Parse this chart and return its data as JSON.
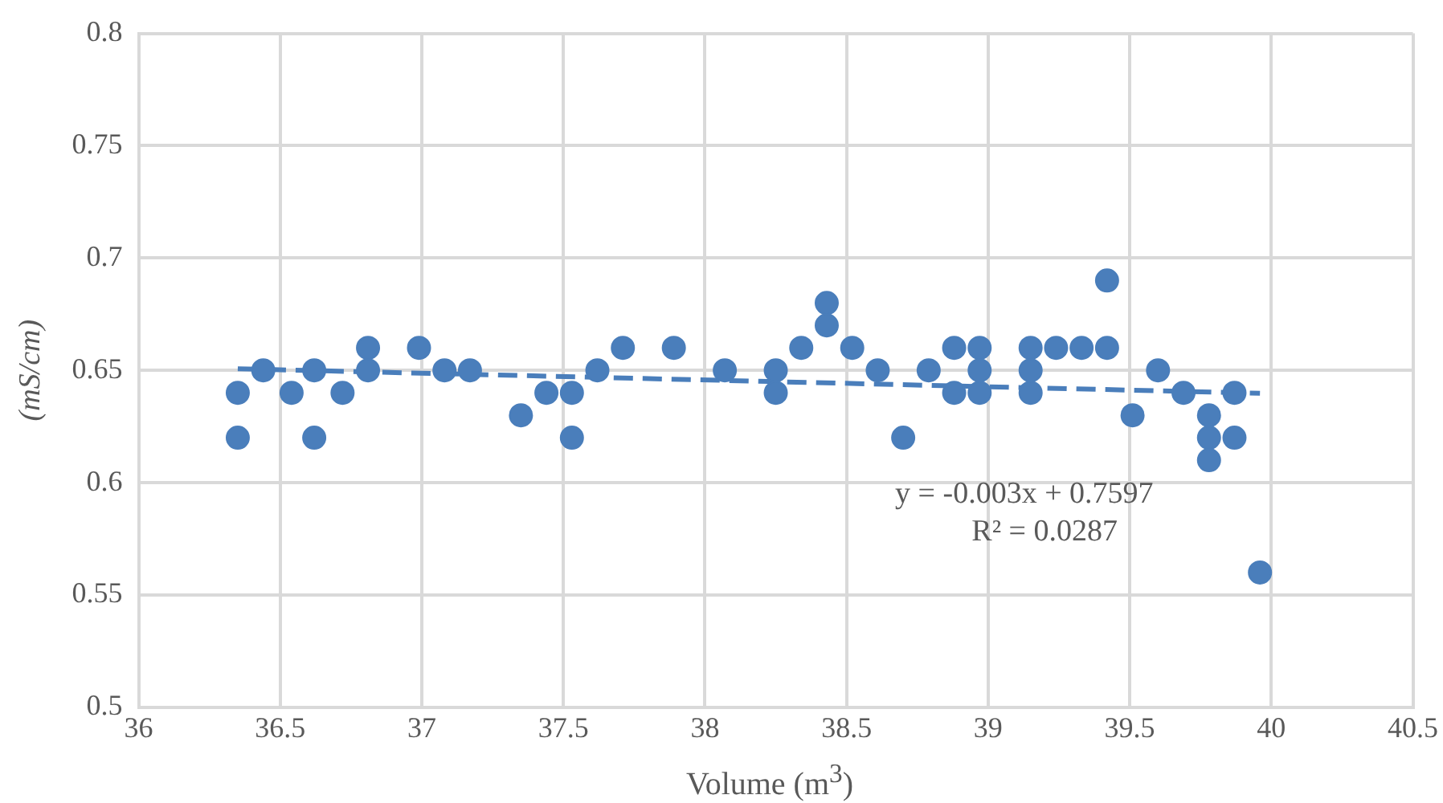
{
  "chart_data": {
    "type": "scatter",
    "xlabel": "Volume (m$^{3}$)",
    "ylabel": "(mS/cm)",
    "xlim": [
      36,
      40.5
    ],
    "xticks": [
      36,
      36.5,
      37,
      37.5,
      38,
      38.5,
      39,
      39.5,
      40,
      40.5
    ],
    "ylim": [
      0.5,
      0.8
    ],
    "yticks": [
      0.5,
      0.55,
      0.6,
      0.65,
      0.7,
      0.75,
      0.8
    ],
    "grid": true,
    "legend": false,
    "marker": "circle",
    "series": [
      {
        "type": "scatter",
        "color": "#4a7ebb",
        "x": [
          36.35,
          36.35,
          36.44,
          36.54,
          36.62,
          36.62,
          36.72,
          36.81,
          36.81,
          36.99,
          37.08,
          37.17,
          37.35,
          37.44,
          37.53,
          37.53,
          37.62,
          37.71,
          37.89,
          38.07,
          38.25,
          38.25,
          38.34,
          38.43,
          38.43,
          38.52,
          38.61,
          38.7,
          38.79,
          38.88,
          38.88,
          38.97,
          38.97,
          38.97,
          39.15,
          39.15,
          39.15,
          39.24,
          39.33,
          39.42,
          39.42,
          39.51,
          39.6,
          39.69,
          39.78,
          39.78,
          39.78,
          39.87,
          39.87,
          39.96
        ],
        "values": [
          0.64,
          0.62,
          0.65,
          0.64,
          0.65,
          0.62,
          0.64,
          0.66,
          0.65,
          0.66,
          0.65,
          0.65,
          0.63,
          0.64,
          0.64,
          0.62,
          0.65,
          0.66,
          0.66,
          0.65,
          0.65,
          0.64,
          0.66,
          0.68,
          0.67,
          0.66,
          0.65,
          0.62,
          0.65,
          0.66,
          0.64,
          0.66,
          0.65,
          0.64,
          0.66,
          0.65,
          0.64,
          0.66,
          0.66,
          0.69,
          0.66,
          0.63,
          0.65,
          0.64,
          0.63,
          0.62,
          0.61,
          0.64,
          0.62,
          0.56
        ]
      },
      {
        "type": "line",
        "color": "#4a7ebb",
        "line_style": "dashed",
        "marker": "none",
        "x": [
          36.35,
          39.96
        ],
        "values": [
          0.6507,
          0.6398
        ]
      }
    ],
    "annotations": [
      "y = -0.003x + 0.7597",
      "R² = 0.0287"
    ]
  }
}
